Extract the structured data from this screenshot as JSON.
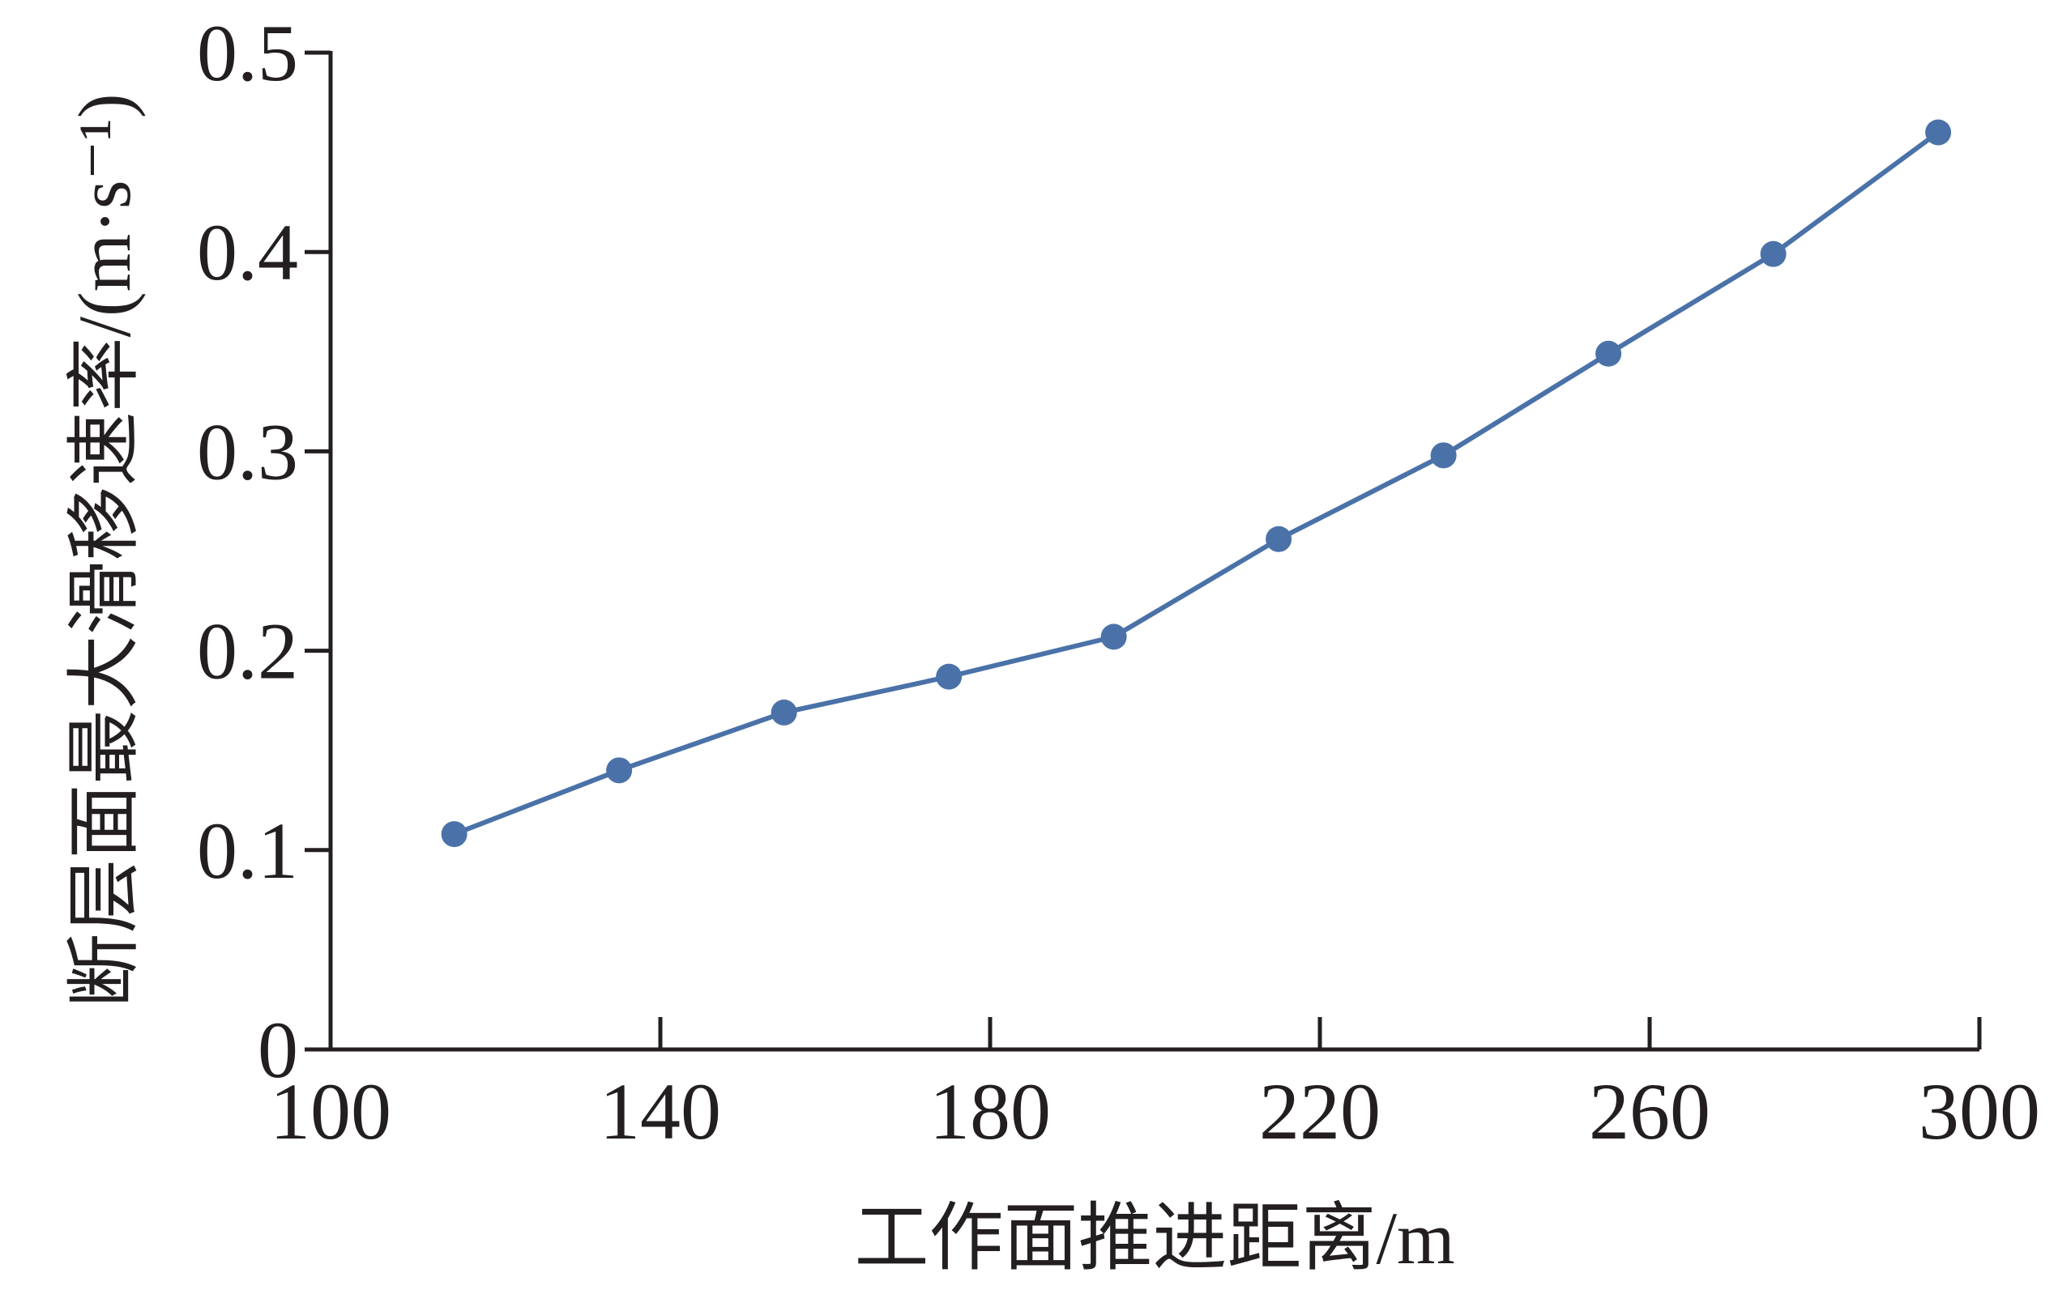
{
  "chart_data": {
    "type": "line",
    "x_label": "工作面推进距离/m",
    "y_label": "断层面最大滑移速率/(m·s⁻¹)",
    "x": [
      115,
      135,
      155,
      175,
      195,
      215,
      235,
      255,
      275,
      295
    ],
    "series": [
      {
        "color": "#4a72a8",
        "values": [
          0.108,
          0.14,
          0.169,
          0.187,
          0.207,
          0.256,
          0.298,
          0.349,
          0.399,
          0.46
        ]
      }
    ],
    "xlim": [
      100,
      300
    ],
    "xticks": [
      100,
      140,
      180,
      220,
      260,
      300
    ],
    "ylim": [
      0,
      0.5
    ],
    "yticks": [
      0,
      0.1,
      0.2,
      0.3,
      0.4,
      0.5
    ],
    "grid": false
  }
}
